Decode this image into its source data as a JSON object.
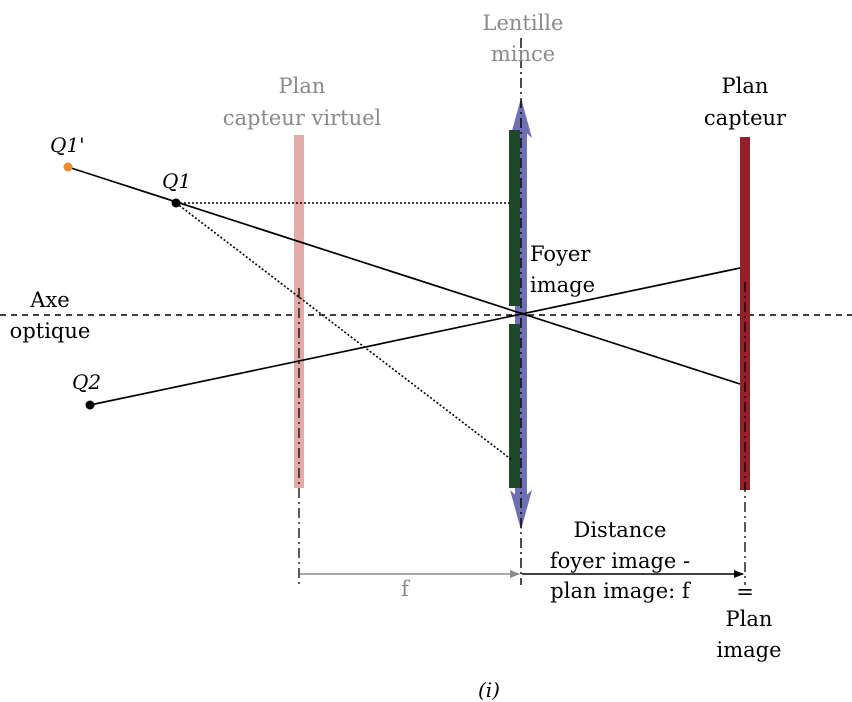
{
  "labels": {
    "lens_line1": "Lentille",
    "lens_line2": "mince",
    "virtual_plane_line1": "Plan",
    "virtual_plane_line2": "capteur virtuel",
    "sensor_plane_line1": "Plan",
    "sensor_plane_line2": "capteur",
    "axis_line1": "Axe",
    "axis_line2": "optique",
    "focus_line1": "Foyer",
    "focus_line2": "image",
    "q1_prime": "Q1'",
    "q1": "Q1",
    "q2": "Q2",
    "f_gray": "f",
    "distance_line1": "Distance",
    "distance_line2": "foyer image -",
    "distance_line3": "plan image: f",
    "equals": "=",
    "image_plane_line1": "Plan",
    "image_plane_line2": "image",
    "caption": "(i)"
  },
  "colors": {
    "virtual_plane": "#e3aaa8",
    "lens_arrow": "#6f6fb3",
    "lens_body": "#1f4a29",
    "sensor_plane": "#96202a",
    "q1_prime_dot": "#e98b2e",
    "gray_text": "#8a8a8a"
  }
}
